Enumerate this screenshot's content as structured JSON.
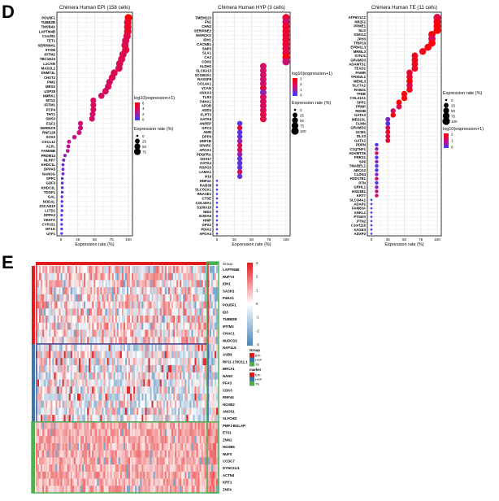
{
  "panel_labels": {
    "d": "D",
    "e": "E"
  },
  "colors": {
    "high": "#ff0000",
    "mid": "#c8107f",
    "low": "#3b3bff",
    "heat_high": "#e31a1c",
    "heat_low": "#4a86b8",
    "group_epi": "#e31a1c",
    "group_hyp": "#3a75ad",
    "group_te": "#4caf50"
  },
  "chart_data": [
    {
      "type": "scatter",
      "title": "Chimera Human EPI (158 cells)",
      "xlabel": "Expression rate (%)",
      "xlim": [
        0,
        100
      ],
      "xticks": [
        "0",
        "25",
        "50",
        "75",
        "100"
      ],
      "grid": true,
      "color_legend": {
        "title": "log10(expression+1)",
        "ticks": [
          "6",
          "4",
          "2",
          "0"
        ],
        "max": 6
      },
      "size_legend": {
        "title": "Expression rate (%)",
        "ticks": [
          "0",
          "25",
          "50",
          "75"
        ]
      },
      "genes": [
        "POU5F1",
        "TUBB2B",
        "TMSB4X",
        "LAPTM4B",
        "C1orf61",
        "TET1",
        "SERPINH1",
        "STOM",
        "IFITM2",
        "TBC1D23",
        "L1CAM",
        "MAD2L2",
        "DNMT3L",
        "CHST2",
        "PIM2",
        "MRS2",
        "USP28",
        "NMRK1",
        "MT1X",
        "IFITM1",
        "PCP4",
        "THY1",
        "SMS3",
        "FGF2",
        "SERINC5",
        "RNF128",
        "SOX3",
        "CXCL12",
        "ALPL",
        "FAM46B",
        "PRDM14",
        "NLRP7",
        "KHDC1L",
        "DPPA5",
        "NANOG",
        "SPP1",
        "GDF3",
        "KHDC3L",
        "TDGF1",
        "GAL",
        "NODAL",
        "ZSCAN10",
        "L1TD1",
        "DPPA3",
        "VENTX",
        "CYP2S1",
        "MT1G",
        "UTF1"
      ],
      "rate": [
        100,
        99,
        99,
        99,
        98,
        96,
        95,
        96,
        92,
        90,
        87,
        86,
        79,
        76,
        72,
        70,
        66,
        60,
        48,
        48,
        48,
        47,
        46,
        29,
        29,
        27,
        20,
        12,
        11,
        10,
        6,
        4,
        3,
        3,
        3,
        2,
        2,
        2,
        2,
        1.5,
        1.5,
        1.5,
        1.5,
        1,
        1,
        1,
        1,
        1
      ],
      "expression": [
        6,
        5,
        5.2,
        5,
        4.5,
        4,
        4.2,
        4.5,
        4,
        4.2,
        4,
        4,
        4.2,
        4,
        3.8,
        3.8,
        3.8,
        3.8,
        3.6,
        3.8,
        3.8,
        3.6,
        3.6,
        3.2,
        3.2,
        3.2,
        3,
        2.8,
        2.6,
        2.6,
        1.5,
        1.4,
        1,
        1,
        1.2,
        0.8,
        0.6,
        1,
        0.6,
        1.2,
        0.8,
        0.6,
        0.6,
        0.4,
        0.4,
        0.3,
        0.3,
        0.3
      ]
    },
    {
      "type": "scatter",
      "title": "Chimera Human HYP (3 cells)",
      "xlabel": "Expression rate (%)",
      "xlim": [
        0,
        100
      ],
      "xticks": [
        "0",
        "25",
        "50",
        "75",
        "100"
      ],
      "grid": true,
      "color_legend": {
        "title": "log10(expression+1)",
        "ticks": [
          "3",
          "2",
          "1",
          "0"
        ],
        "max": 3
      },
      "size_legend": {
        "title": "Expression rate (%)",
        "ticks": [
          "0",
          "25",
          "50",
          "75",
          "100"
        ]
      },
      "genes": [
        "TMEM123",
        "FN1",
        "CHN2",
        "SERPINE2",
        "MARCKS",
        "IDH1",
        "CACNB1",
        "SNP3",
        "SLA1",
        "CA2",
        "CDH2",
        "ALDH2",
        "SLC6A13",
        "SCGB3A1",
        "RASSF8",
        "COL4A1",
        "VCAN",
        "ANXA3",
        "TLR3",
        "P4HA1",
        "APOB",
        "ADD3",
        "FLRT3",
        "GATA6",
        "ANPEP",
        "GPC3",
        "AMN",
        "DPP4",
        "HNF1B",
        "SPARC",
        "APOA1",
        "PDGFRA",
        "SOX17",
        "GATA4",
        "RSPO3",
        "LAMA1",
        "H19",
        "HNF4A",
        "RAB38",
        "SLCO2A1",
        "RNASE1",
        "CTSE",
        "COL18A1",
        "S100A16",
        "NID2",
        "S100A6",
        "HHIP",
        "GPX2",
        "PDIA2",
        "APOA4"
      ],
      "rate": [
        100,
        100,
        100,
        100,
        100,
        100,
        100,
        100,
        100,
        100,
        100,
        67,
        67,
        67,
        67,
        67,
        67,
        67,
        67,
        67,
        67,
        67,
        67,
        67,
        33,
        33,
        33,
        33,
        33,
        33,
        33,
        33,
        33,
        33,
        33,
        33,
        33,
        0,
        0,
        0,
        0,
        0,
        0,
        0,
        0,
        0,
        0,
        0,
        0,
        0
      ],
      "expression": [
        2.4,
        1.8,
        2.5,
        2.5,
        2.4,
        2.3,
        2.4,
        2.2,
        2.2,
        3,
        1.6,
        1.8,
        1.8,
        1.8,
        1.8,
        1.7,
        2.2,
        0.8,
        1.9,
        1.9,
        1.9,
        2,
        2.2,
        2.2,
        0.3,
        2.4,
        0.3,
        0.4,
        1,
        2,
        2,
        1,
        0.4,
        0.4,
        0.4,
        2,
        0.4,
        0,
        0,
        0,
        0,
        0,
        0,
        0,
        0,
        0,
        0,
        0,
        0,
        0
      ]
    },
    {
      "type": "scatter",
      "title": "Chimera Human TE (11 cells)",
      "xlabel": "Expression rate (%)",
      "xlim": [
        0,
        100
      ],
      "xticks": [
        "0",
        "25",
        "50",
        "75",
        "100"
      ],
      "grid": true,
      "color_legend": {
        "title": "log10(expression+1)",
        "ticks": [
          "2",
          "1",
          "0"
        ],
        "max": 2.5
      },
      "size_legend": {
        "title": "Expression rate (%)",
        "ticks": [
          "0",
          "25",
          "50",
          "75",
          "100"
        ]
      },
      "genes": [
        "ATP6V1C2",
        "NR2F2",
        "PPME1",
        "NLS",
        "GNG12",
        "JPH3",
        "TRIP10",
        "EPB41L3",
        "MRML3",
        "SYNJ1",
        "GRAMD3",
        "ADAMTS1",
        "TEAD1",
        "PAWR",
        "TPD52L1",
        "MEML3",
        "SLC7A2",
        "RAB31",
        "TFEB",
        "COL21A1",
        "SPP1",
        "PRNP",
        "RHOB",
        "GATA3",
        "MED13L",
        "CLMN",
        "GRAMD2",
        "GCM1",
        "DLX3",
        "GATA2",
        "PDPN",
        "C1QTNF1",
        "ADAMTS6",
        "FRRS1",
        "SP6",
        "TMABEL1",
        "ABCG2",
        "CLDN4",
        "HSD17B1",
        "PTN",
        "GRHL1",
        "HSD3B1",
        "KRT7",
        "SLCO4A1",
        "ADAP2",
        "FAM83A",
        "ANKL1",
        "PTGES",
        "PTN2",
        "C1orf116",
        "XAGE3",
        "ADXP2"
      ],
      "rate": [
        100,
        100,
        100,
        100,
        92,
        92,
        92,
        86,
        78,
        66,
        66,
        66,
        66,
        58,
        58,
        58,
        58,
        58,
        50,
        50,
        42,
        42,
        33,
        33,
        25,
        25,
        25,
        25,
        25,
        25,
        8,
        8,
        8,
        8,
        8,
        8,
        8,
        8,
        8,
        8,
        8,
        8,
        8,
        0,
        0,
        0,
        0,
        0,
        0,
        0,
        0,
        0
      ],
      "expression": [
        1.8,
        2.2,
        2.4,
        2.5,
        2.4,
        1.6,
        2.4,
        2.3,
        2.2,
        2.2,
        2.2,
        2.2,
        2.2,
        2,
        2,
        2.5,
        1.8,
        2.2,
        2.4,
        2.4,
        2.5,
        1.8,
        1.4,
        2.4,
        0.6,
        0.2,
        1.6,
        2.2,
        1.8,
        2,
        0.2,
        0.6,
        1.6,
        0.2,
        0.8,
        0.2,
        0.2,
        0.6,
        1.4,
        0.2,
        0.8,
        1.2,
        1.4,
        0,
        0,
        0,
        0,
        0,
        0,
        0,
        0,
        0
      ]
    },
    {
      "type": "heatmap",
      "genes": [
        "LAPTM4B",
        "RUFY3",
        "IDH1",
        "SASH1",
        "P4HA1",
        "POU5F1",
        "ID3",
        "TUBB2B",
        "IFITM3",
        "CHAC1",
        "NUDCD2",
        "NAP1L5",
        "ASB9",
        "RP11-170O11.1",
        "BRCA1",
        "NANS",
        "PFAS",
        "CDK3",
        "RNF44",
        "HOXB2",
        "ANOS1",
        "SLFCHD",
        "PMF1-BGLAP",
        "ETS1",
        "ZNN1",
        "HOXB5",
        "NUF2",
        "CCDC7",
        "DYNC2LI1",
        "ACTN4",
        "KRT1",
        "ZNF4"
      ],
      "row_groups": [
        "EPI",
        "EPI",
        "EPI",
        "EPI",
        "EPI",
        "EPI",
        "EPI",
        "EPI",
        "EPI",
        "EPI",
        "EPI",
        "HYP",
        "HYP",
        "HYP",
        "HYP",
        "HYP",
        "HYP",
        "HYP",
        "HYP",
        "HYP",
        "HYP",
        "HYP",
        "TE",
        "TE",
        "TE",
        "TE",
        "TE",
        "TE",
        "TE",
        "TE",
        "TE",
        "TE"
      ],
      "top_annotation_label": "Group",
      "scale": {
        "min": -3,
        "max": 3,
        "ticks": [
          "3",
          "2",
          "1",
          "0",
          "-1",
          "-2",
          "-3"
        ]
      },
      "legends": [
        {
          "title": "Group",
          "items": [
            "EPI",
            "HYP",
            "TE"
          ]
        },
        {
          "title": "marker",
          "items": [
            "EPI",
            "HYP",
            "TE"
          ]
        }
      ]
    }
  ]
}
